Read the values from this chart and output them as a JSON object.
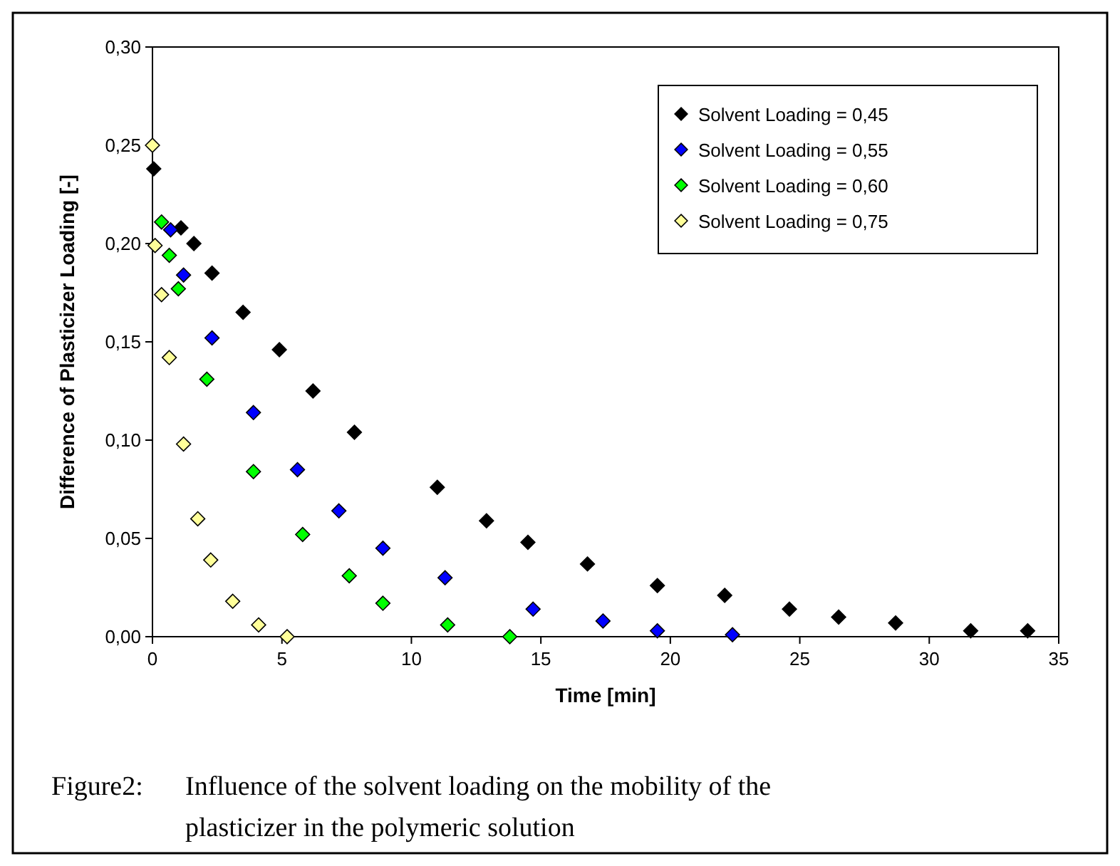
{
  "chart_data": {
    "type": "scatter",
    "xlabel": "Time [min]",
    "ylabel": "Difference of Plasticizer Loading [-]",
    "xlim": [
      0,
      35
    ],
    "xticks": [
      0,
      5,
      10,
      15,
      20,
      25,
      30,
      35
    ],
    "ylim": [
      0,
      0.3
    ],
    "yticks": [
      {
        "value": 0,
        "label": "0,00"
      },
      {
        "value": 0.05,
        "label": "0,05"
      },
      {
        "value": 0.1,
        "label": "0,10"
      },
      {
        "value": 0.15,
        "label": "0,15"
      },
      {
        "value": 0.2,
        "label": "0,20"
      },
      {
        "value": 0.25,
        "label": "0,25"
      },
      {
        "value": 0.3,
        "label": "0,30"
      }
    ],
    "grid": false,
    "legend": "top right",
    "marker": "diamond",
    "series": [
      {
        "name": "Solvent Loading = 0,45",
        "color": "#000000",
        "x": [
          0.05,
          1.1,
          1.6,
          2.3,
          3.5,
          4.9,
          6.2,
          7.8,
          11.0,
          12.9,
          14.5,
          16.8,
          19.5,
          22.1,
          24.6,
          26.5,
          28.7,
          31.6,
          33.8
        ],
        "values": [
          0.238,
          0.208,
          0.2,
          0.185,
          0.165,
          0.146,
          0.125,
          0.104,
          0.076,
          0.059,
          0.048,
          0.037,
          0.026,
          0.021,
          0.014,
          0.01,
          0.007,
          0.003,
          0.003
        ]
      },
      {
        "name": "Solvent Loading = 0,55",
        "color": "#0000ff",
        "x": [
          0.7,
          1.2,
          2.3,
          3.9,
          5.6,
          7.2,
          8.9,
          11.3,
          14.7,
          17.4,
          19.5,
          22.4
        ],
        "values": [
          0.207,
          0.184,
          0.152,
          0.114,
          0.085,
          0.064,
          0.045,
          0.03,
          0.014,
          0.008,
          0.003,
          0.001
        ]
      },
      {
        "name": "Solvent Loading = 0,60",
        "color": "#00ff00",
        "x": [
          0.35,
          0.65,
          1.0,
          2.1,
          3.9,
          5.8,
          7.6,
          8.9,
          11.4,
          13.8
        ],
        "values": [
          0.211,
          0.194,
          0.177,
          0.131,
          0.084,
          0.052,
          0.031,
          0.017,
          0.006,
          0.0
        ]
      },
      {
        "name": "Solvent Loading = 0,75",
        "color": "#ffff99",
        "x": [
          0,
          0.1,
          0.35,
          0.65,
          1.2,
          1.75,
          2.25,
          3.1,
          4.1,
          5.2
        ],
        "values": [
          0.25,
          0.199,
          0.174,
          0.142,
          0.098,
          0.06,
          0.039,
          0.018,
          0.006,
          0.0
        ]
      }
    ],
    "annotations": [
      "Figure2: Influence of the solvent loading on the mobility of the plasticizer in the polymeric solution"
    ]
  }
}
